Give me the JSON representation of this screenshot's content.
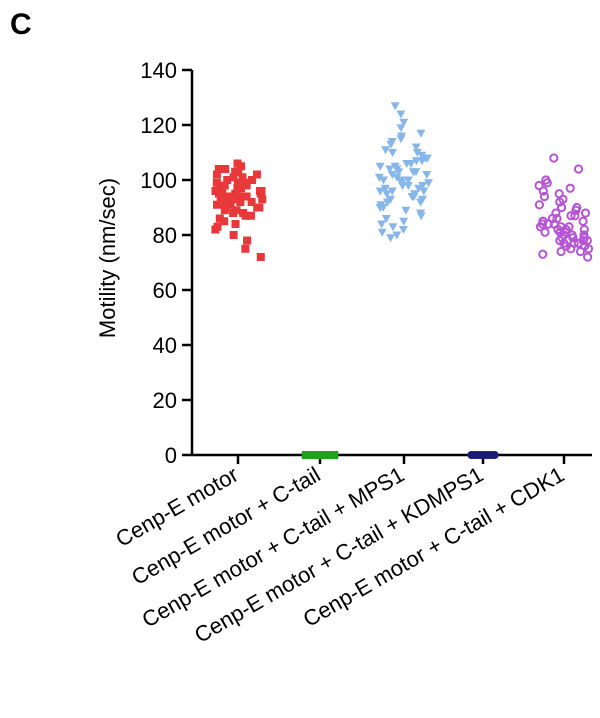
{
  "panel_label": "C",
  "chart_data": {
    "type": "scatter",
    "title": "",
    "xlabel": "",
    "ylabel": "Motility (nm/sec)",
    "ylim": [
      0,
      140
    ],
    "yticks": [
      0,
      20,
      40,
      60,
      80,
      100,
      120,
      140
    ],
    "grid": false,
    "legend": "none",
    "categories": [
      "Cenp-E motor",
      "Cenp-E motor + C-tail",
      "Cenp-E motor + C-tail + MPS1",
      "Cenp-E motor + C-tail + KDMPS1",
      "Cenp-E motor + C-tail + CDK1"
    ],
    "series": [
      {
        "category": "Cenp-E motor",
        "marker": "square",
        "color": "#e8383a",
        "values": [
          106,
          105,
          104,
          104,
          103,
          103,
          102,
          102,
          101,
          101,
          100,
          100,
          99,
          99,
          99,
          98,
          98,
          98,
          97,
          97,
          97,
          96,
          96,
          96,
          95,
          95,
          95,
          95,
          94,
          94,
          94,
          94,
          93,
          93,
          93,
          93,
          92,
          92,
          92,
          92,
          91,
          91,
          91,
          90,
          90,
          90,
          89,
          89,
          88,
          88,
          87,
          87,
          86,
          85,
          84,
          83,
          82,
          80,
          78,
          75,
          72
        ]
      },
      {
        "category": "Cenp-E motor + C-tail",
        "marker": "square",
        "color": "#1fa01f",
        "values": [
          0,
          0,
          0,
          0,
          0,
          0,
          0,
          0,
          0,
          0,
          0,
          0
        ]
      },
      {
        "category": "Cenp-E motor + C-tail + MPS1",
        "marker": "triangle-down",
        "color": "#86b6ea",
        "values": [
          127,
          124,
          121,
          119,
          117,
          116,
          115,
          114,
          113,
          112,
          111,
          110,
          110,
          109,
          108,
          108,
          107,
          107,
          106,
          106,
          105,
          105,
          104,
          104,
          103,
          103,
          103,
          102,
          102,
          101,
          101,
          100,
          100,
          100,
          99,
          99,
          98,
          98,
          98,
          97,
          97,
          96,
          96,
          96,
          95,
          95,
          94,
          94,
          93,
          93,
          92,
          92,
          91,
          90,
          90,
          89,
          88,
          87,
          86,
          85,
          84,
          83,
          82,
          81,
          80,
          79
        ]
      },
      {
        "category": "Cenp-E motor + C-tail + KDMPS1",
        "marker": "circle",
        "color": "#1c1c78",
        "values": [
          0,
          0,
          0,
          0,
          0,
          0,
          0,
          0,
          0,
          0
        ]
      },
      {
        "category": "Cenp-E motor + C-tail + CDK1",
        "marker": "open-circle",
        "color": "#b455d4",
        "values": [
          108,
          104,
          100,
          99,
          98,
          97,
          96,
          95,
          94,
          93,
          92,
          91,
          90,
          90,
          89,
          88,
          88,
          87,
          87,
          86,
          86,
          85,
          85,
          85,
          84,
          84,
          84,
          83,
          83,
          83,
          82,
          82,
          82,
          81,
          81,
          81,
          80,
          80,
          80,
          79,
          79,
          79,
          78,
          78,
          78,
          77,
          77,
          77,
          76,
          76,
          75,
          75,
          74,
          74,
          73,
          72
        ]
      }
    ]
  }
}
